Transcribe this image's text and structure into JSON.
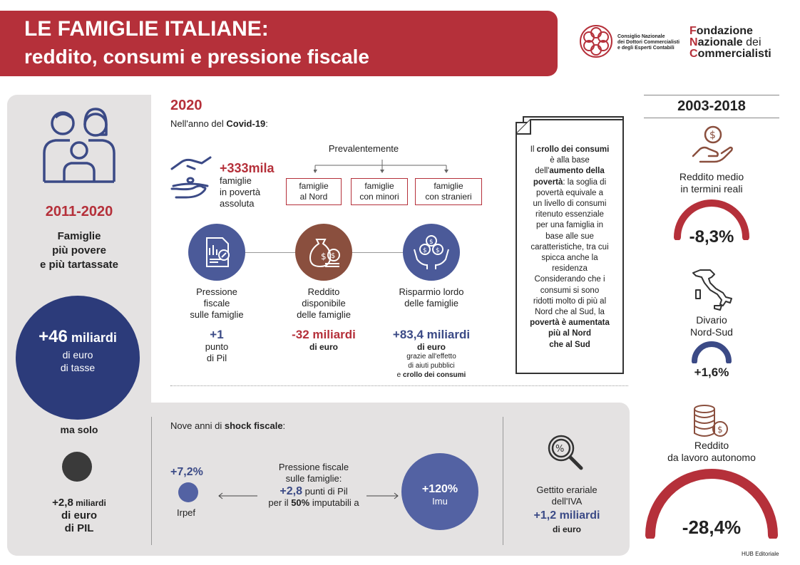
{
  "header": {
    "title_line1": "LE FAMIGLIE ITALIANE:",
    "title_line2": "reddito, consumi e pressione fiscale",
    "cndcec_lines": [
      "Consiglio Nazionale",
      "dei Dottori Commercialisti",
      "e degli Esperti Contabili"
    ],
    "fnc_line1_a": "F",
    "fnc_line1_b": "ondazione",
    "fnc_line2_a": "N",
    "fnc_line2_b": "azionale",
    "fnc_line2_c": " dei",
    "fnc_line3_a": "C",
    "fnc_line3_b": "ommercialisti"
  },
  "left": {
    "period": "2011-2020",
    "subtitle_lines": [
      "Famiglie",
      "più povere",
      "e più tartassate"
    ],
    "circle_big": "+46",
    "circle_unit": " miliardi",
    "circle_line2": "di euro",
    "circle_line3": "di tasse",
    "ma_solo": "ma solo",
    "pil_value": "+2,8",
    "pil_unit": " miliardi",
    "pil_line2": "di euro",
    "pil_line3": "di PIL"
  },
  "covid": {
    "year": "2020",
    "intro_a": "Nell'anno del ",
    "intro_b": "Covid-19",
    "intro_c": ":",
    "poverty_value": "+333mila",
    "poverty_lines": [
      "famiglie",
      "in povertà",
      "assoluta"
    ],
    "prevalentemente": "Prevalentemente",
    "categories": [
      [
        "famiglie",
        "al Nord"
      ],
      [
        "famiglie",
        "con minori"
      ],
      [
        "famiglie",
        "con stranieri"
      ]
    ],
    "metrics": [
      {
        "label": [
          "Pressione",
          "fiscale",
          "sulle famiglie"
        ],
        "value": "+1",
        "sub": [
          "punto",
          "di Pil"
        ]
      },
      {
        "label": [
          "Reddito",
          "disponibile",
          "delle famiglie"
        ],
        "value": "-32 miliardi",
        "sub": [
          "di euro"
        ]
      },
      {
        "label": [
          "Risparmio lordo",
          "delle famiglie"
        ],
        "value": "+83,4 miliardi",
        "sub": [
          "di euro"
        ],
        "note_lines": [
          "grazie all'effetto",
          "di aiuti pubblici"
        ],
        "note_last_a": "e ",
        "note_last_b": "crollo dei consumi"
      }
    ]
  },
  "note_box": {
    "lines": [
      [
        {
          "t": "Il ",
          "b": false
        },
        {
          "t": "crollo dei consumi",
          "b": true
        }
      ],
      [
        {
          "t": "è alla base",
          "b": false
        }
      ],
      [
        {
          "t": "dell'",
          "b": false
        },
        {
          "t": "aumento della",
          "b": true
        }
      ],
      [
        {
          "t": "povertà",
          "b": true
        },
        {
          "t": ": la soglia di",
          "b": false
        }
      ],
      [
        {
          "t": "povertà equivale a",
          "b": false
        }
      ],
      [
        {
          "t": "un livello di consumi",
          "b": false
        }
      ],
      [
        {
          "t": "ritenuto essenziale",
          "b": false
        }
      ],
      [
        {
          "t": "per una famiglia in",
          "b": false
        }
      ],
      [
        {
          "t": "base alle sue",
          "b": false
        }
      ],
      [
        {
          "t": "caratteristiche, tra cui",
          "b": false
        }
      ],
      [
        {
          "t": "spicca anche la",
          "b": false
        }
      ],
      [
        {
          "t": "residenza",
          "b": false
        }
      ],
      [
        {
          "t": "Considerando che i",
          "b": false
        }
      ],
      [
        {
          "t": "consumi si sono",
          "b": false
        }
      ],
      [
        {
          "t": "ridotti molto di più al",
          "b": false
        }
      ],
      [
        {
          "t": "Nord che al Sud, la",
          "b": false
        }
      ],
      [
        {
          "t": "povertà è aumentata",
          "b": true
        }
      ],
      [
        {
          "t": "più al Nord",
          "b": true
        }
      ],
      [
        {
          "t": "che al Sud",
          "b": true
        }
      ]
    ]
  },
  "shock": {
    "intro_a": "Nove anni di ",
    "intro_b": "shock fiscale",
    "intro_c": ":",
    "irpef_value": "+7,2%",
    "irpef_label": "Irpef",
    "pressure_lines": [
      "Pressione fiscale",
      "sulle famiglie:"
    ],
    "pressure_value": "+2,8",
    "pressure_unit": " punti di Pil",
    "pressure_line4_a": "per il ",
    "pressure_line4_b": "50%",
    "pressure_line4_c": " imputabili a",
    "imu_value": "+120%",
    "imu_label": "Imu",
    "iva_lines": [
      "Gettito erariale",
      "dell'IVA"
    ],
    "iva_value": "+1,2 miliardi",
    "iva_unit": "di euro"
  },
  "right": {
    "period": "2003-2018",
    "items": [
      {
        "label": [
          "Reddito medio",
          "in termini reali"
        ],
        "value": "-8,3%",
        "gauge_fraction": 0.083,
        "color": "#b5303a"
      },
      {
        "label": [
          "Divario",
          "Nord-Sud"
        ],
        "value": "+1,6%",
        "gauge_fraction": 0.016,
        "color": "#3b4a86"
      },
      {
        "label": [
          "Reddito",
          "da lavoro autonomo"
        ],
        "value": "-28,4%",
        "gauge_fraction": 0.284,
        "color": "#b5303a"
      }
    ],
    "credit": "HUB Editoriale"
  },
  "colors": {
    "red": "#b5303a",
    "blue": "#3b4a86",
    "brown": "#8a4f3e",
    "gray_panel": "#e4e2e2",
    "dark_dot": "#3a3a3a"
  }
}
